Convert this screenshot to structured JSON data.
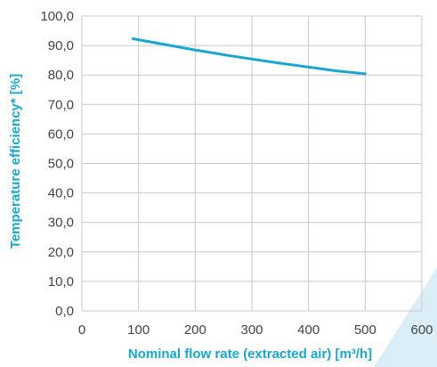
{
  "chart_data": {
    "type": "line",
    "title": "",
    "xlabel": "Nominal flow rate (extracted air) [m³/h]",
    "ylabel": "Temperature efficiency* [%]",
    "xlim": [
      0,
      600
    ],
    "ylim": [
      0,
      100
    ],
    "x_ticks": [
      "0",
      "100",
      "200",
      "300",
      "400",
      "500",
      "600"
    ],
    "y_ticks": [
      "0,0",
      "10,0",
      "20,0",
      "30,0",
      "40,0",
      "50,0",
      "60,0",
      "70,0",
      "80,0",
      "90,0",
      "100,0"
    ],
    "grid": true,
    "legend": "none",
    "series": [
      {
        "x": [
          90,
          150,
          200,
          250,
          300,
          350,
          400,
          450,
          500
        ],
        "values": [
          92.3,
          90.2,
          88.5,
          86.9,
          85.4,
          84.0,
          82.7,
          81.4,
          80.4
        ]
      }
    ],
    "colors": {
      "line": "#1aa6cf",
      "axis_title": "#1aa6cf",
      "grid": "#c8c8c8",
      "tick_label": "#444444",
      "decoration": "#dbeef8"
    }
  }
}
